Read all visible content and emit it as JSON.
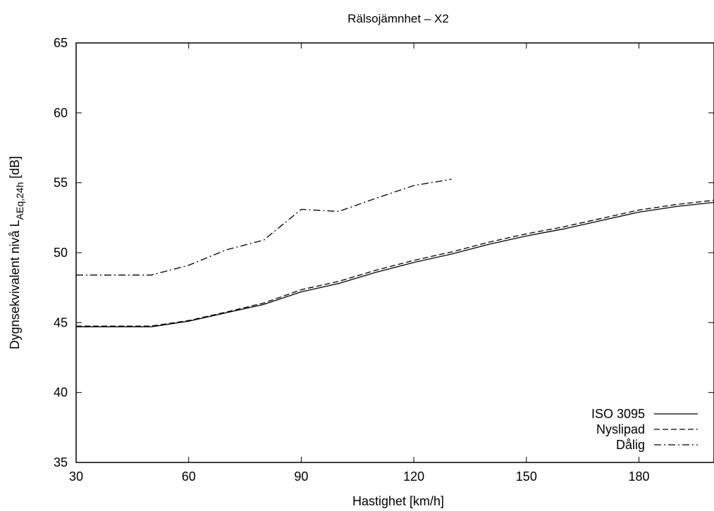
{
  "chart_data": {
    "type": "line",
    "title": "Rälsojämnhet – X2",
    "xlabel": "Hastighet [km/h]",
    "ylabel": {
      "main": "Dygnsekvivalent nivå L",
      "sub": "AEq,24h",
      "suffix": " [dB]"
    },
    "xlim": [
      30,
      200
    ],
    "ylim": [
      35,
      65
    ],
    "xticks": [
      30,
      60,
      90,
      120,
      150,
      180
    ],
    "yticks": [
      35,
      40,
      45,
      50,
      55,
      60,
      65
    ],
    "grid": false,
    "legend_position": "bottom-right",
    "series": [
      {
        "name": "ISO 3095",
        "dash": "solid",
        "x": [
          30,
          40,
          50,
          60,
          70,
          80,
          90,
          100,
          110,
          120,
          130,
          140,
          150,
          160,
          170,
          180,
          190,
          200
        ],
        "y": [
          44.7,
          44.7,
          44.7,
          45.1,
          45.7,
          46.3,
          47.2,
          47.8,
          48.6,
          49.3,
          49.9,
          50.6,
          51.2,
          51.7,
          52.3,
          52.9,
          53.3,
          53.6
        ]
      },
      {
        "name": "Nyslipad",
        "dash": "dashed",
        "x": [
          30,
          40,
          50,
          60,
          70,
          80,
          90,
          100,
          110,
          120,
          130,
          140,
          150,
          160,
          170,
          180,
          190,
          200
        ],
        "y": [
          44.75,
          44.75,
          44.75,
          45.15,
          45.75,
          46.4,
          47.35,
          47.95,
          48.75,
          49.45,
          50.05,
          50.75,
          51.35,
          51.85,
          52.45,
          53.05,
          53.45,
          53.75
        ]
      },
      {
        "name": "Dålig",
        "dash": "dashdot",
        "x": [
          30,
          40,
          50,
          60,
          70,
          80,
          90,
          100,
          110,
          120,
          130
        ],
        "y": [
          48.4,
          48.4,
          48.4,
          49.1,
          50.2,
          50.9,
          53.1,
          52.95,
          53.9,
          54.8,
          55.25
        ]
      }
    ]
  }
}
